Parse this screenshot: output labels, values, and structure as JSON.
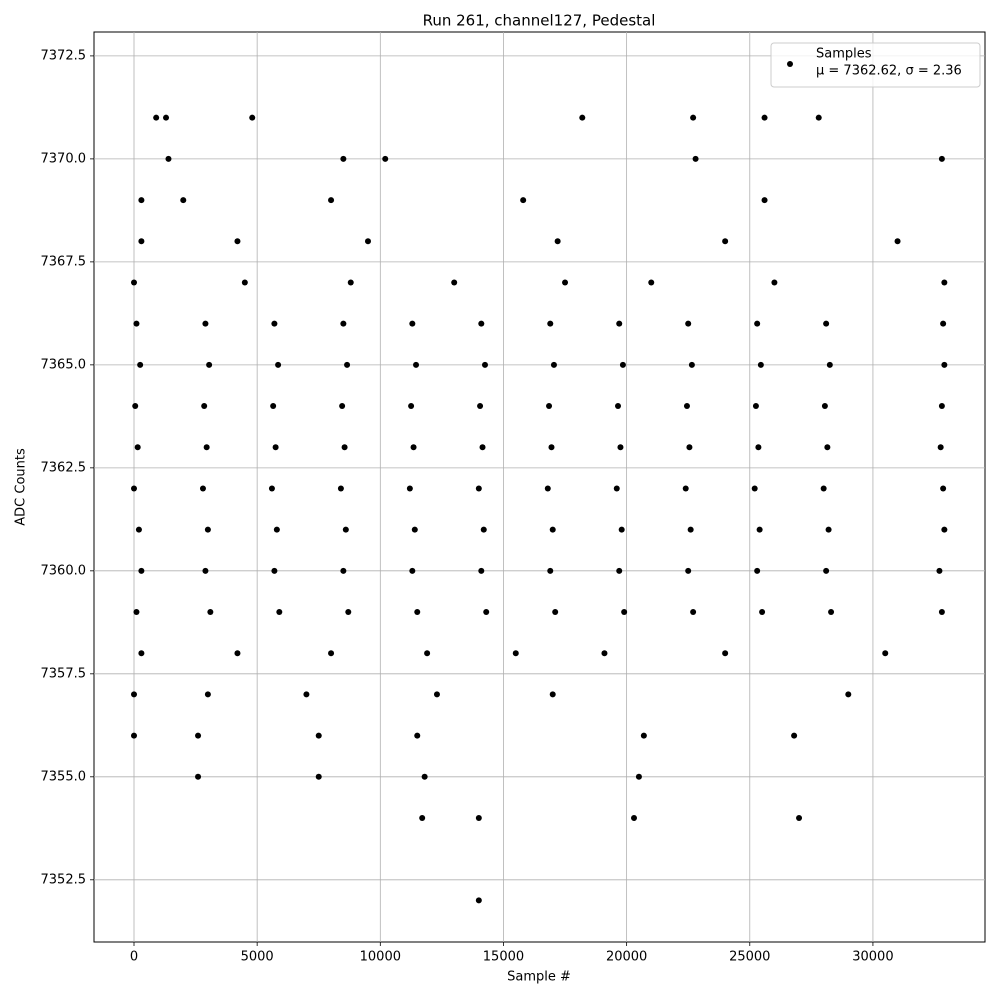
{
  "chart_data": {
    "type": "scatter",
    "title": "Run 261, channel127, Pedestal",
    "xlabel": "Sample #",
    "ylabel": "ADC Counts",
    "legend_note": "μ = 7362.62, σ = 2.36",
    "legend": "upper right",
    "grid": true,
    "xlim": [
      -1624,
      34550
    ],
    "ylim": [
      7350.99,
      7373.08
    ],
    "xticks": [
      0,
      5000,
      10000,
      15000,
      20000,
      25000,
      30000
    ],
    "yticks": [
      7352.5,
      {
        "value": 7355,
        "label": "7355.0"
      },
      7357.5,
      {
        "value": 7360,
        "label": "7360.0"
      },
      7362.5,
      {
        "value": 7365,
        "label": "7365.0"
      },
      7367.5,
      {
        "value": 7370,
        "label": "7370.0"
      },
      7372.5
    ],
    "series": [
      {
        "name": "Samples",
        "color": "#000000",
        "x": [
          100,
          3100,
          5900,
          8700,
          11500,
          14300,
          17100,
          19900,
          22700,
          25500,
          28300,
          32800,
          300,
          2900,
          5700,
          8500,
          11300,
          14100,
          16900,
          19700,
          22500,
          25300,
          28100,
          32700,
          200,
          3000,
          5800,
          8600,
          11400,
          14200,
          17000,
          19800,
          22600,
          25400,
          28200,
          32900,
          0,
          2800,
          5600,
          8400,
          11200,
          14000,
          16800,
          19600,
          22400,
          25200,
          28000,
          32850,
          150,
          2950,
          5750,
          8550,
          11350,
          14150,
          16950,
          19750,
          22550,
          25350,
          28150,
          32750,
          50,
          2850,
          5650,
          8450,
          11250,
          14050,
          16850,
          19650,
          22450,
          25250,
          28050,
          32800,
          250,
          3050,
          5850,
          8650,
          11450,
          14250,
          17050,
          19850,
          22650,
          25450,
          28250,
          32900,
          100,
          2900,
          5700,
          8500,
          11300,
          14100,
          16900,
          19700,
          22500,
          25300,
          28100,
          32850,
          300,
          4200,
          8000,
          11900,
          15500,
          19100,
          24000,
          30500,
          0,
          4500,
          8800,
          13000,
          17500,
          21000,
          26000,
          32900,
          0,
          3000,
          7000,
          12300,
          17000,
          29000,
          300,
          4200,
          9500,
          17200,
          24000,
          31000,
          0,
          2600,
          7500,
          11500,
          20700,
          26800,
          300,
          2000,
          8000,
          15800,
          25600,
          2600,
          7500,
          11800,
          20500,
          1400,
          8500,
          10200,
          22800,
          32800,
          11700,
          14000,
          20300,
          27000,
          14000,
          900,
          1300,
          4800,
          18200,
          22700,
          25600,
          27800
        ],
        "y": [
          7359,
          7359,
          7359,
          7359,
          7359,
          7359,
          7359,
          7359,
          7359,
          7359,
          7359,
          7359,
          7360,
          7360,
          7360,
          7360,
          7360,
          7360,
          7360,
          7360,
          7360,
          7360,
          7360,
          7360,
          7361,
          7361,
          7361,
          7361,
          7361,
          7361,
          7361,
          7361,
          7361,
          7361,
          7361,
          7361,
          7362,
          7362,
          7362,
          7362,
          7362,
          7362,
          7362,
          7362,
          7362,
          7362,
          7362,
          7362,
          7363,
          7363,
          7363,
          7363,
          7363,
          7363,
          7363,
          7363,
          7363,
          7363,
          7363,
          7363,
          7364,
          7364,
          7364,
          7364,
          7364,
          7364,
          7364,
          7364,
          7364,
          7364,
          7364,
          7364,
          7365,
          7365,
          7365,
          7365,
          7365,
          7365,
          7365,
          7365,
          7365,
          7365,
          7365,
          7365,
          7366,
          7366,
          7366,
          7366,
          7366,
          7366,
          7366,
          7366,
          7366,
          7366,
          7366,
          7366,
          7358,
          7358,
          7358,
          7358,
          7358,
          7358,
          7358,
          7358,
          7367,
          7367,
          7367,
          7367,
          7367,
          7367,
          7367,
          7367,
          7357,
          7357,
          7357,
          7357,
          7357,
          7357,
          7368,
          7368,
          7368,
          7368,
          7368,
          7368,
          7356,
          7356,
          7356,
          7356,
          7356,
          7356,
          7369,
          7369,
          7369,
          7369,
          7369,
          7355,
          7355,
          7355,
          7355,
          7370,
          7370,
          7370,
          7370,
          7370,
          7354,
          7354,
          7354,
          7354,
          7352,
          7371,
          7371,
          7371,
          7371,
          7371,
          7371,
          7371
        ]
      }
    ]
  }
}
